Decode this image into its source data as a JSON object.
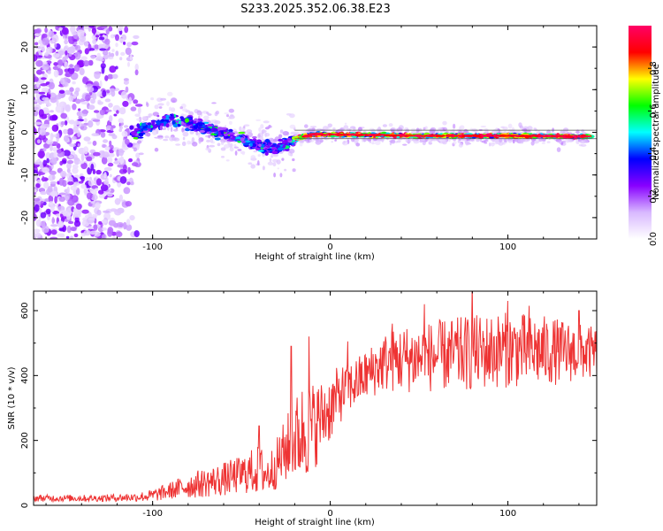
{
  "title": "S233.2025.352.06.38.E23",
  "colors": {
    "snr_line": "#ee3333",
    "band_line": "#555555",
    "axis": "#000000",
    "background": "#ffffff"
  },
  "chart_data": [
    {
      "type": "heatmap",
      "name": "spectrogram",
      "xlabel": "Height of straight line (km)",
      "ylabel": "Frequency (Hz)",
      "xlim": [
        -167,
        150
      ],
      "ylim": [
        -25,
        25
      ],
      "xticks": [
        -100,
        0,
        100
      ],
      "yticks": [
        -20,
        -10,
        0,
        10,
        20
      ],
      "colorbar": {
        "label": "Normalized spectral amplitude",
        "range": [
          0,
          1
        ],
        "ticks": [
          0.0,
          0.2,
          0.4,
          0.6,
          0.8
        ],
        "colormap": [
          "#ffffff",
          "#d8b8ff",
          "#8800ff",
          "#0000ff",
          "#00ffff",
          "#00ff00",
          "#ffff00",
          "#ff0000",
          "#ff0066"
        ]
      },
      "noise_region": {
        "x_range": [
          -167,
          -105
        ],
        "freq_range": [
          -25,
          25
        ]
      },
      "signal_ridge": [
        {
          "x": -110,
          "freq": 0
        },
        {
          "x": -90,
          "freq": 3
        },
        {
          "x": -70,
          "freq": 1
        },
        {
          "x": -55,
          "freq": -1
        },
        {
          "x": -40,
          "freq": -3
        },
        {
          "x": -30,
          "freq": -4
        },
        {
          "x": -20,
          "freq": -1.5
        },
        {
          "x": -10,
          "freq": -0.5
        },
        {
          "x": 0,
          "freq": -0.5
        },
        {
          "x": 50,
          "freq": -0.8
        },
        {
          "x": 100,
          "freq": -0.8
        },
        {
          "x": 145,
          "freq": -1
        }
      ],
      "reference_band_hz": [
        -1.5,
        0.5
      ]
    },
    {
      "type": "line",
      "name": "snr",
      "xlabel": "Height of straight line (km)",
      "ylabel": "SNR (10 * v/v)",
      "xlim": [
        -167,
        150
      ],
      "ylim": [
        0,
        660
      ],
      "xticks": [
        -100,
        0,
        100
      ],
      "yticks": [
        0,
        200,
        400,
        600
      ],
      "series": [
        {
          "name": "SNR",
          "envelope_x": [
            -167,
            -130,
            -110,
            -100,
            -90,
            -80,
            -70,
            -60,
            -50,
            -40,
            -35,
            -30,
            -25,
            -20,
            -15,
            -10,
            -5,
            0,
            5,
            10,
            20,
            30,
            40,
            60,
            80,
            100,
            120,
            150
          ],
          "envelope_mean": [
            22,
            22,
            25,
            30,
            45,
            60,
            70,
            80,
            95,
            110,
            95,
            130,
            170,
            200,
            230,
            240,
            270,
            300,
            340,
            360,
            400,
            440,
            450,
            460,
            470,
            480,
            475,
            470
          ],
          "envelope_spread": [
            8,
            8,
            10,
            15,
            20,
            30,
            35,
            40,
            45,
            60,
            50,
            60,
            80,
            100,
            120,
            110,
            90,
            80,
            70,
            60,
            60,
            70,
            80,
            85,
            90,
            90,
            85,
            60
          ],
          "peaks": [
            {
              "x": -40,
              "y": 245
            },
            {
              "x": -22,
              "y": 490
            },
            {
              "x": -12,
              "y": 520
            },
            {
              "x": 10,
              "y": 505
            },
            {
              "x": 35,
              "y": 560
            },
            {
              "x": 53,
              "y": 620
            },
            {
              "x": 80,
              "y": 690
            },
            {
              "x": 100,
              "y": 630
            },
            {
              "x": 112,
              "y": 615
            },
            {
              "x": 140,
              "y": 600
            }
          ]
        }
      ]
    }
  ]
}
